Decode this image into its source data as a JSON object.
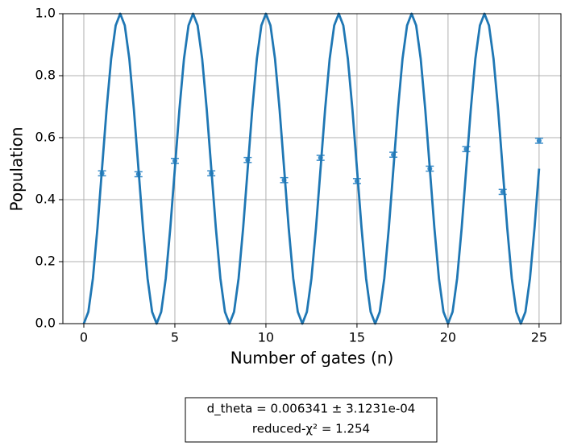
{
  "chart_data": {
    "type": "line",
    "xlabel": "Number of gates (n)",
    "ylabel": "Population",
    "xlim": [
      -1.15,
      26.2
    ],
    "ylim": [
      0,
      1
    ],
    "xticks": [
      0,
      5,
      10,
      15,
      20,
      25
    ],
    "yticks": [
      {
        "value": 0,
        "label": "0.0"
      },
      0.2,
      0.4,
      0.6,
      0.8,
      {
        "value": 1,
        "label": "1.0"
      }
    ],
    "grid": true,
    "series": [
      {
        "type": "line",
        "color": "#1f77b4",
        "x": [
          0,
          0.25,
          0.5,
          0.75,
          1,
          1.25,
          1.5,
          1.75,
          2,
          2.25,
          2.5,
          2.75,
          3,
          3.25,
          3.5,
          3.75,
          4,
          4.25,
          4.5,
          4.75,
          5,
          5.25,
          5.5,
          5.75,
          6,
          6.25,
          6.5,
          6.75,
          7,
          7.25,
          7.5,
          7.75,
          8,
          8.25,
          8.5,
          8.75,
          9,
          9.25,
          9.5,
          9.75,
          10,
          10.25,
          10.5,
          10.75,
          11,
          11.25,
          11.5,
          11.75,
          12,
          12.25,
          12.5,
          12.75,
          13,
          13.25,
          13.5,
          13.75,
          14,
          14.25,
          14.5,
          14.75,
          15,
          15.25,
          15.5,
          15.75,
          16,
          16.25,
          16.5,
          16.75,
          17,
          17.25,
          17.5,
          17.75,
          18,
          18.25,
          18.5,
          18.75,
          19,
          19.25,
          19.5,
          19.75,
          20,
          20.25,
          20.5,
          20.75,
          21,
          21.25,
          21.5,
          21.75,
          22,
          22.25,
          22.5,
          22.75,
          23,
          23.25,
          23.5,
          23.75,
          24,
          24.25,
          24.5,
          24.75,
          25
        ],
        "values": [
          0,
          0.038,
          0.146,
          0.309,
          0.5,
          0.691,
          0.854,
          0.962,
          1,
          0.962,
          0.854,
          0.691,
          0.5,
          0.309,
          0.146,
          0.038,
          0,
          0.038,
          0.146,
          0.309,
          0.5,
          0.691,
          0.854,
          0.962,
          1,
          0.962,
          0.854,
          0.691,
          0.5,
          0.309,
          0.146,
          0.038,
          0,
          0.038,
          0.146,
          0.309,
          0.5,
          0.691,
          0.854,
          0.962,
          1,
          0.962,
          0.854,
          0.691,
          0.5,
          0.309,
          0.146,
          0.038,
          0,
          0.038,
          0.146,
          0.309,
          0.5,
          0.691,
          0.854,
          0.962,
          1,
          0.962,
          0.854,
          0.691,
          0.5,
          0.309,
          0.146,
          0.038,
          0,
          0.038,
          0.146,
          0.309,
          0.5,
          0.691,
          0.854,
          0.962,
          1,
          0.962,
          0.854,
          0.691,
          0.5,
          0.309,
          0.146,
          0.038,
          0,
          0.038,
          0.146,
          0.309,
          0.5,
          0.691,
          0.854,
          0.962,
          1,
          0.962,
          0.854,
          0.691,
          0.5,
          0.309,
          0.146,
          0.038,
          0,
          0.038,
          0.146,
          0.309,
          0.5
        ]
      },
      {
        "type": "errorbar",
        "color": "#3a8cc8",
        "x": [
          1,
          3,
          5,
          7,
          9,
          11,
          13,
          15,
          17,
          19,
          21,
          23,
          25
        ],
        "values": [
          0.485,
          0.482,
          0.525,
          0.485,
          0.528,
          0.463,
          0.535,
          0.46,
          0.545,
          0.5,
          0.563,
          0.425,
          0.59
        ],
        "errors": [
          0.008,
          0.008,
          0.008,
          0.008,
          0.008,
          0.008,
          0.008,
          0.008,
          0.008,
          0.008,
          0.008,
          0.008,
          0.008
        ]
      }
    ],
    "annotation": [
      "d_theta =   0.006341 ±  3.1231e-04",
      "reduced-χ² =  1.254"
    ]
  }
}
